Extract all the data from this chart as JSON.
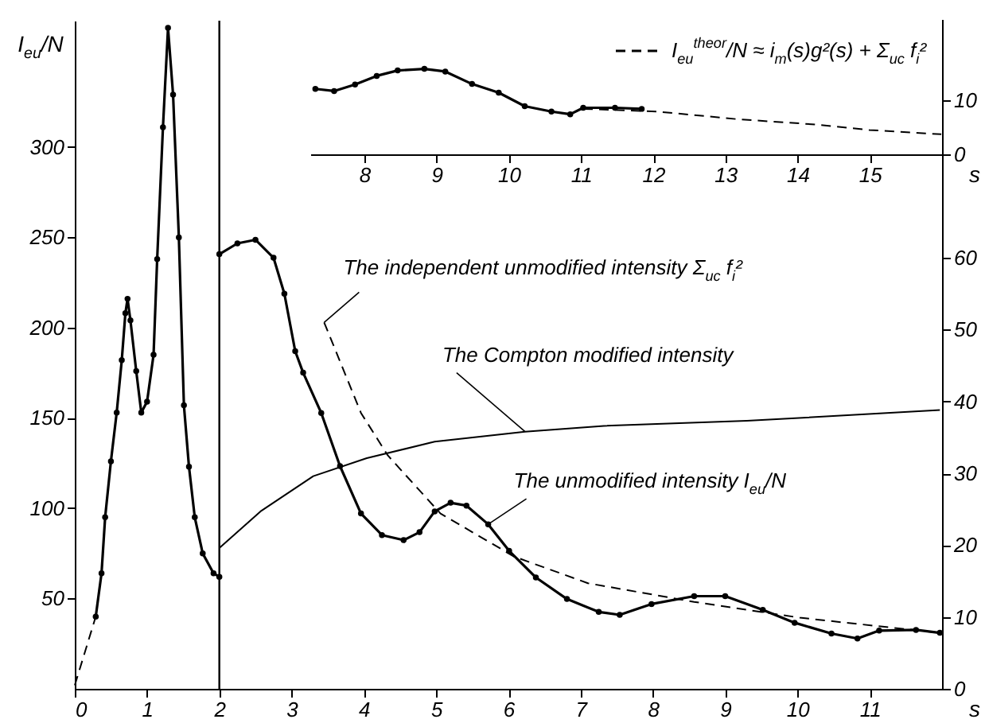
{
  "chart_data": [
    {
      "type": "line",
      "xlabel": "s",
      "y2label": "I$_{eu}$/N",
      "xlim": [
        0,
        12
      ],
      "xticks": [
        0,
        1,
        2,
        3,
        4,
        5,
        6,
        7,
        8,
        9,
        10,
        11
      ],
      "ylim": [
        0,
        93
      ],
      "yticks": [
        0,
        10,
        20,
        30,
        40,
        50,
        60
      ],
      "y2lim": [
        0,
        370
      ],
      "y2ticks": [
        50,
        100,
        150,
        200,
        250,
        300
      ],
      "series": [
        {
          "color": "#000000",
          "marker": "circle",
          "axis": "y2",
          "x": [
            0.29,
            0.37,
            0.42,
            0.5,
            0.58,
            0.65,
            0.7,
            0.73,
            0.77,
            0.85,
            0.92,
            1.0,
            1.09,
            1.14,
            1.22,
            1.29,
            1.36,
            1.44,
            1.51,
            1.58,
            1.66,
            1.77,
            1.92,
            2.0
          ],
          "values": [
            40,
            64,
            95,
            126,
            153,
            182,
            208,
            216,
            204,
            176,
            153,
            159,
            185,
            238,
            311,
            366,
            329,
            250,
            157,
            123,
            95,
            75,
            64,
            62
          ]
        },
        {
          "color": "#000000",
          "axis": "y2",
          "line_style": "dashed",
          "x": [
            0,
            0.29
          ],
          "values": [
            2,
            40
          ]
        },
        {
          "color": "#000000",
          "marker": "circle",
          "x": [
            2.0,
            2.25,
            2.5,
            2.75,
            2.9,
            3.05,
            3.16,
            3.41,
            3.67,
            3.96,
            4.25,
            4.55,
            4.77,
            4.98,
            5.2,
            5.42,
            5.72,
            6.01,
            6.38,
            6.81,
            7.25,
            7.54,
            7.98,
            8.57,
            9.0,
            9.52,
            9.96,
            10.47,
            10.83,
            11.13,
            11.64,
            11.97
          ],
          "values": [
            60.5,
            62,
            62.5,
            60,
            55,
            47,
            44,
            38.4,
            31,
            24.4,
            21.4,
            20.7,
            21.8,
            24.7,
            25.9,
            25.5,
            22.9,
            19.2,
            15.5,
            12.5,
            10.7,
            10.3,
            11.8,
            12.9,
            12.9,
            11,
            9.2,
            7.7,
            7,
            8.1,
            8.2,
            7.8
          ]
        },
        {
          "color": "#000000",
          "x": [
            2.0,
            2.57,
            3.3,
            4.04,
            4.98,
            6.23,
            7.32,
            9.3,
            11.97
          ],
          "values": [
            19.6,
            24.7,
            29.6,
            32.1,
            34.4,
            35.8,
            36.6,
            37.3,
            38.8
          ]
        },
        {
          "color": "#000000",
          "line_style": "dashed",
          "x": [
            3.45,
            3.6,
            3.96,
            4.33,
            5.06,
            6.08,
            7.1,
            8.57,
            10.03,
            11.97
          ],
          "values": [
            51,
            47.3,
            38.4,
            32.5,
            24.4,
            18.4,
            14.7,
            12.1,
            9.9,
            7.8
          ]
        }
      ],
      "ref_lines": [
        {
          "axis": "x",
          "value": 2
        }
      ],
      "annotations": [
        {
          "text": "The independent unmodified intensity Σ$_{uc}$ f$_{i}$²",
          "x": 3.45,
          "y": 51
        },
        {
          "text": "The Compton modified intensity",
          "x": 6.23,
          "y": 35.8
        },
        {
          "text": "The unmodified intensity I$_{eu}$/N",
          "x": 5.72,
          "y": 22.9
        }
      ]
    },
    {
      "type": "line",
      "xlabel": "s",
      "xlim": [
        7.25,
        16
      ],
      "xticks": [
        8,
        9,
        10,
        11,
        12,
        13,
        14,
        15
      ],
      "ylim": [
        0,
        25
      ],
      "yticks": [
        0,
        10
      ],
      "series": [
        {
          "color": "#000000",
          "marker": "circle",
          "x": [
            7.32,
            7.58,
            7.87,
            8.17,
            8.46,
            8.83,
            9.12,
            9.49,
            9.86,
            10.22,
            10.59,
            10.85,
            11.03,
            11.47,
            11.84
          ],
          "values": [
            12.1,
            11.7,
            12.9,
            14.5,
            15.5,
            15.8,
            15.3,
            13.0,
            11.4,
            8.9,
            7.9,
            7.4,
            8.6,
            8.6,
            8.4
          ]
        },
        {
          "name": "I$_{eu}$$^{theor}$/N ≈ i$_{m}$(s)g²(s) + Σ$_{uc}$ f$_{i}$²",
          "color": "#000000",
          "line_style": "dashed",
          "x": [
            11.03,
            12.06,
            13.16,
            14.26,
            14.99,
            15.99
          ],
          "values": [
            8.4,
            7.9,
            6.5,
            5.5,
            4.5,
            3.7
          ]
        }
      ]
    }
  ]
}
